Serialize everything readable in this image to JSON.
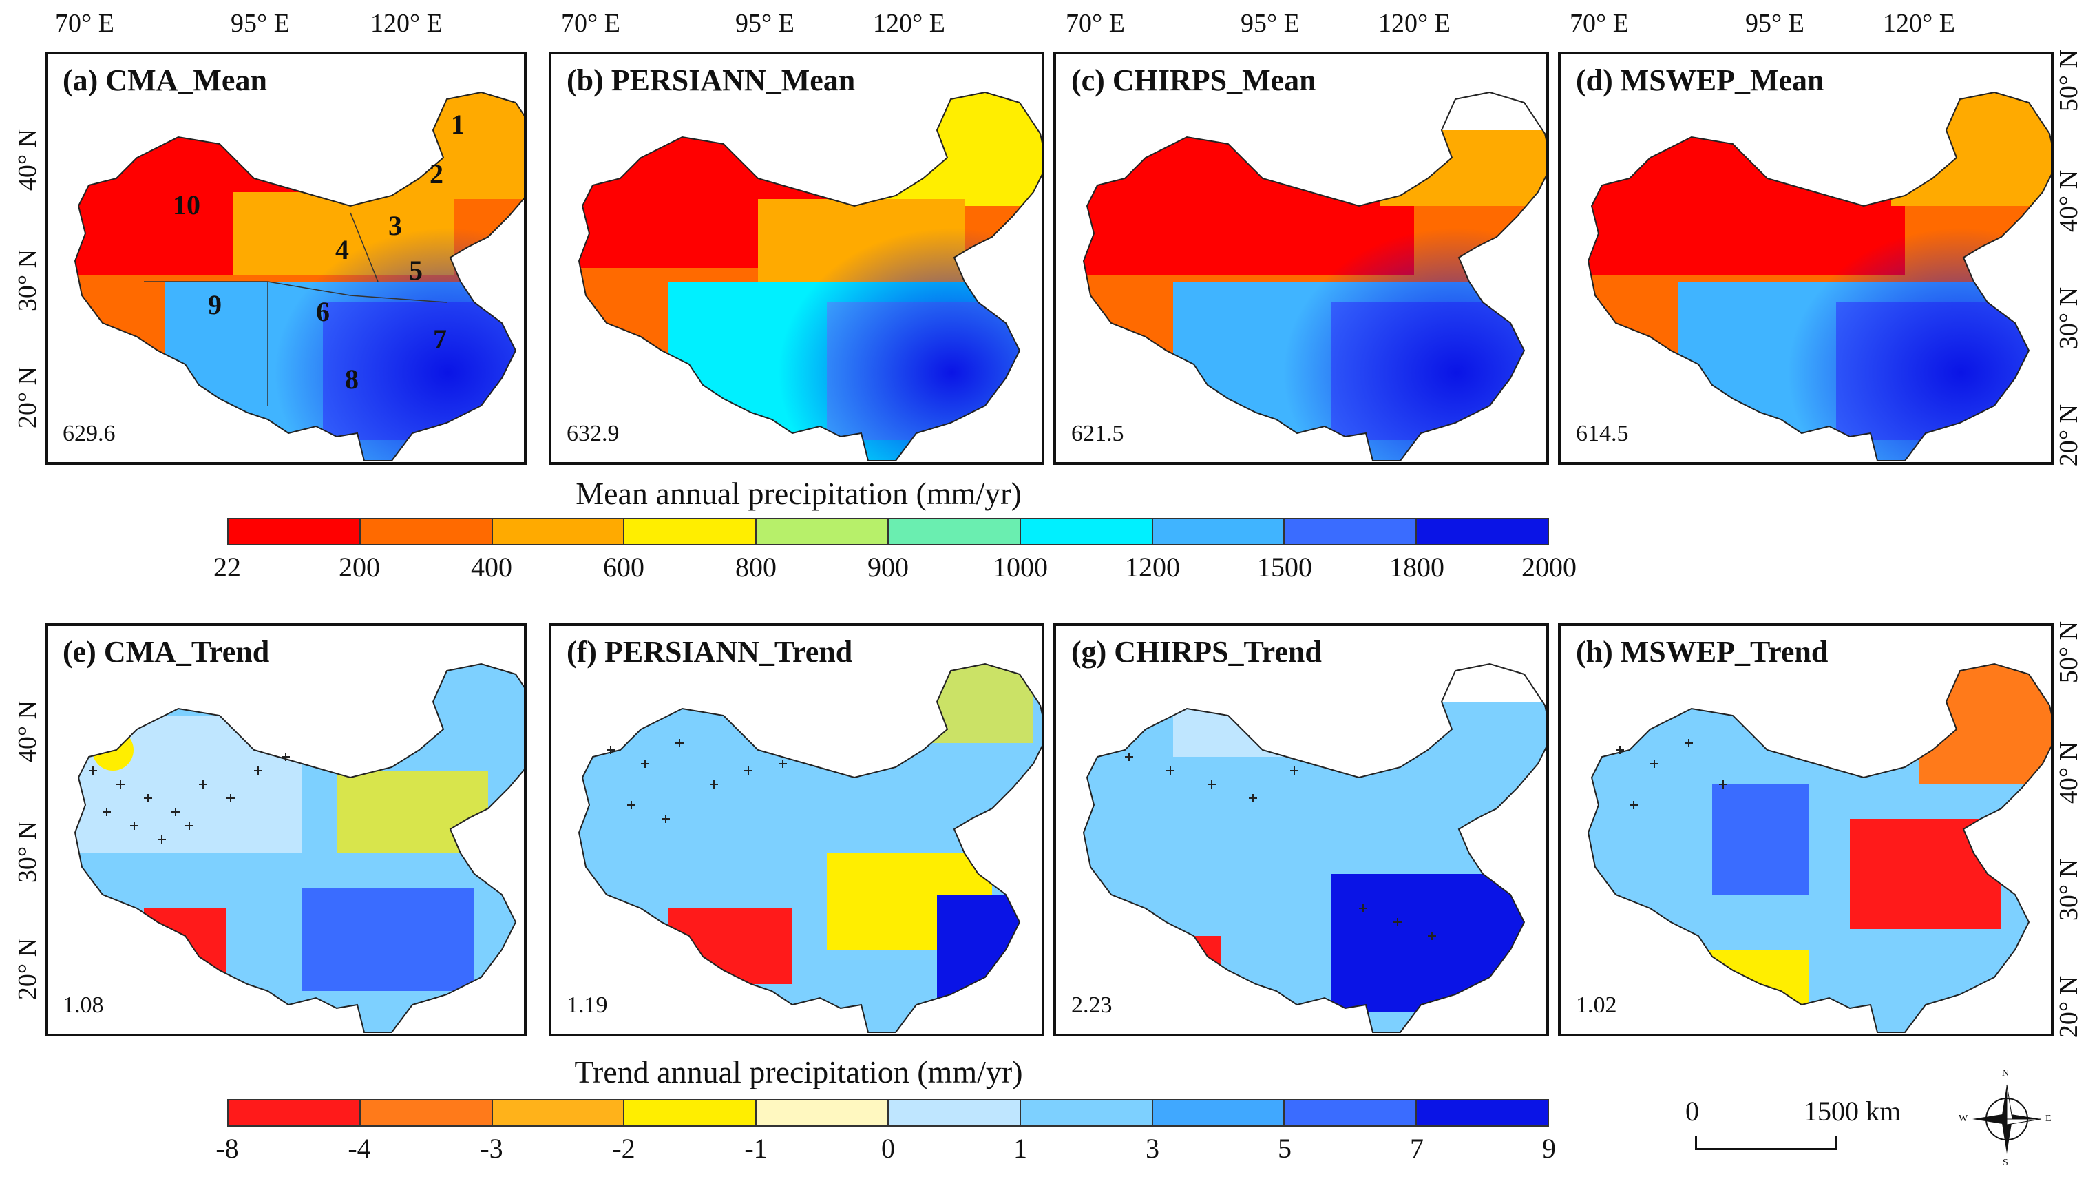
{
  "top_lon_labels": [
    [
      "70° E",
      "95° E",
      "120° E"
    ],
    [
      "70° E",
      "95° E",
      "120° E"
    ],
    [
      "70° E",
      "95° E",
      "120° E"
    ],
    [
      "70° E",
      "95° E",
      "120° E"
    ]
  ],
  "lat_labels": [
    "50° N",
    "40° N",
    "30° N",
    "20° N"
  ],
  "panels_top": [
    {
      "title": "(a) CMA_Mean",
      "value": "629.6",
      "region_numbers": [
        "1",
        "2",
        "3",
        "4",
        "5",
        "6",
        "7",
        "8",
        "9",
        "10"
      ]
    },
    {
      "title": "(b) PERSIANN_Mean",
      "value": "632.9"
    },
    {
      "title": "(c) CHIRPS_Mean",
      "value": "621.5"
    },
    {
      "title": "(d) MSWEP_Mean",
      "value": "614.5"
    }
  ],
  "panels_bottom": [
    {
      "title": "(e) CMA_Trend",
      "value": "1.08"
    },
    {
      "title": "(f) PERSIANN_Trend",
      "value": "1.19"
    },
    {
      "title": "(g) CHIRPS_Trend",
      "value": "2.23"
    },
    {
      "title": "(h) MSWEP_Trend",
      "value": "1.02"
    }
  ],
  "colorbar_mean": {
    "title": "Mean annual precipitation (mm/yr)",
    "ticks": [
      "22",
      "200",
      "400",
      "600",
      "800",
      "900",
      "1000",
      "1200",
      "1500",
      "1800",
      "2000"
    ],
    "colors": [
      "#ff0000",
      "#ff6a00",
      "#ffaa00",
      "#ffee00",
      "#b7f06a",
      "#6aeeb0",
      "#00f0ff",
      "#40b4ff",
      "#3a6cff",
      "#0a14e6"
    ]
  },
  "colorbar_trend": {
    "title": "Trend annual precipitation (mm/yr)",
    "ticks": [
      "-8",
      "-4",
      "-3",
      "-2",
      "-1",
      "0",
      "1",
      "3",
      "5",
      "7",
      "9"
    ],
    "colors": [
      "#ff1a1a",
      "#ff7a1a",
      "#ffb21a",
      "#ffee00",
      "#fff8c0",
      "#bfe6ff",
      "#7dd0ff",
      "#40a8ff",
      "#3a6cff",
      "#0a14e6"
    ]
  },
  "scale_bar": {
    "start": "0",
    "end": "1500 km"
  },
  "compass": {
    "n": "N",
    "s": "S",
    "e": "E",
    "w": "W"
  }
}
